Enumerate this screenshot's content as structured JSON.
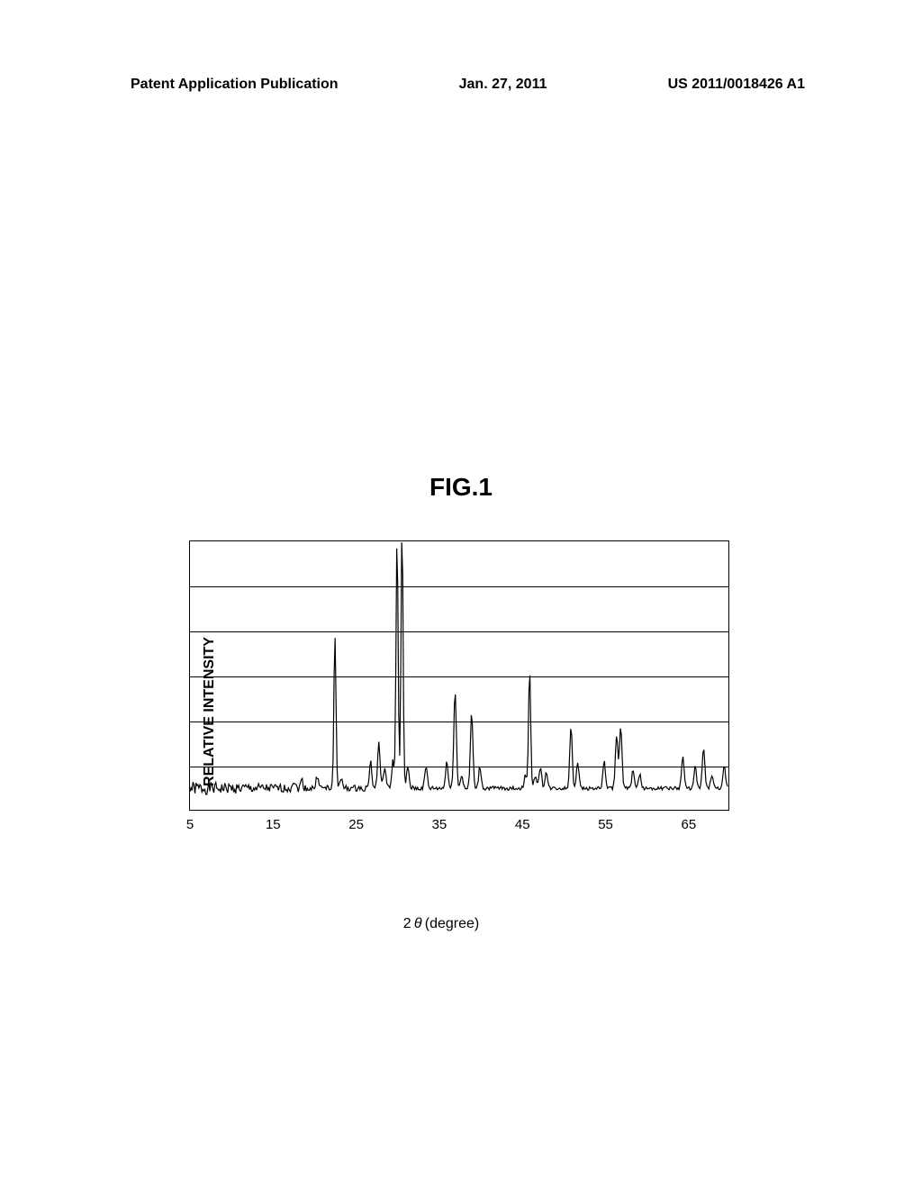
{
  "header": {
    "left": "Patent Application Publication",
    "center": "Jan. 27, 2011",
    "right": "US 2011/0018426 A1"
  },
  "figure": {
    "title": "FIG.1"
  },
  "chart": {
    "type": "line",
    "y_label": "RELATIVE INTENSITY",
    "x_label_prefix": "2",
    "x_label_symbol": "θ",
    "x_label_suffix": "(degree)",
    "x_min": 5,
    "x_max": 70,
    "x_ticks": [
      5,
      15,
      25,
      35,
      45,
      55,
      65
    ],
    "y_min": 0,
    "y_max": 100,
    "y_gridlines": [
      16.67,
      33.33,
      50,
      66.67,
      83.33
    ],
    "background_color": "#ffffff",
    "grid_color": "#000000",
    "line_color": "#000000",
    "line_width": 1.2,
    "baseline_level": 8,
    "noise_amplitude": 2,
    "noise_decay_x": 15,
    "peaks": [
      {
        "x": 17.5,
        "height": 3,
        "width": 0.3
      },
      {
        "x": 18.5,
        "height": 3,
        "width": 0.3
      },
      {
        "x": 20.4,
        "height": 5,
        "width": 0.3
      },
      {
        "x": 22.5,
        "height": 57,
        "width": 0.25
      },
      {
        "x": 23.2,
        "height": 4,
        "width": 0.3
      },
      {
        "x": 26.8,
        "height": 10,
        "width": 0.3
      },
      {
        "x": 27.8,
        "height": 17,
        "width": 0.3
      },
      {
        "x": 28.5,
        "height": 8,
        "width": 0.3
      },
      {
        "x": 29.5,
        "height": 10,
        "width": 0.3
      },
      {
        "x": 30.0,
        "height": 94,
        "width": 0.25
      },
      {
        "x": 30.6,
        "height": 97,
        "width": 0.25
      },
      {
        "x": 31.3,
        "height": 8,
        "width": 0.3
      },
      {
        "x": 33.5,
        "height": 8,
        "width": 0.3
      },
      {
        "x": 36.0,
        "height": 10,
        "width": 0.3
      },
      {
        "x": 37.0,
        "height": 37,
        "width": 0.3
      },
      {
        "x": 37.8,
        "height": 5,
        "width": 0.3
      },
      {
        "x": 39.0,
        "height": 28,
        "width": 0.3
      },
      {
        "x": 40.0,
        "height": 8,
        "width": 0.3
      },
      {
        "x": 45.5,
        "height": 5,
        "width": 0.3
      },
      {
        "x": 46.0,
        "height": 45,
        "width": 0.25
      },
      {
        "x": 46.7,
        "height": 5,
        "width": 0.3
      },
      {
        "x": 47.3,
        "height": 8,
        "width": 0.3
      },
      {
        "x": 48.0,
        "height": 6,
        "width": 0.3
      },
      {
        "x": 51.0,
        "height": 23,
        "width": 0.3
      },
      {
        "x": 51.8,
        "height": 10,
        "width": 0.3
      },
      {
        "x": 55.0,
        "height": 10,
        "width": 0.3
      },
      {
        "x": 56.5,
        "height": 20,
        "width": 0.3
      },
      {
        "x": 57.0,
        "height": 23,
        "width": 0.3
      },
      {
        "x": 58.5,
        "height": 7,
        "width": 0.3
      },
      {
        "x": 59.3,
        "height": 5,
        "width": 0.3
      },
      {
        "x": 64.5,
        "height": 12,
        "width": 0.3
      },
      {
        "x": 66.0,
        "height": 8,
        "width": 0.3
      },
      {
        "x": 67.0,
        "height": 15,
        "width": 0.3
      },
      {
        "x": 68.0,
        "height": 5,
        "width": 0.3
      },
      {
        "x": 69.5,
        "height": 8,
        "width": 0.3
      }
    ]
  }
}
